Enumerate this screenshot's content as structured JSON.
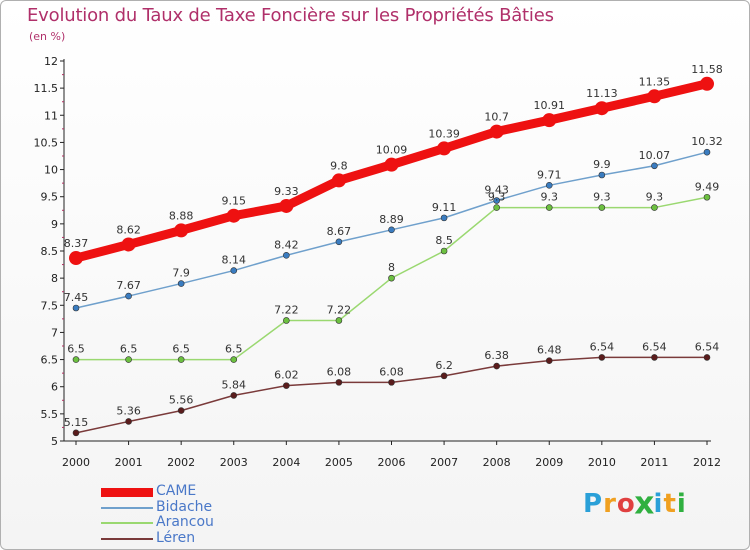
{
  "title": "Evolution du Taux de Taxe Foncière sur les Propriétés Bâties",
  "unit_label": "(en %)",
  "logo": {
    "text": "Proxiti",
    "colors": [
      "#2aa0d8",
      "#f0a020",
      "#e04040",
      "#30b040",
      "#2aa0d8",
      "#f0a020",
      "#30b040"
    ]
  },
  "chart_data": {
    "type": "line",
    "title": "Evolution du Taux de Taxe Foncière sur les Propriétés Bâties",
    "ylabel": "(en %)",
    "xlabel": "",
    "x": [
      "2000",
      "2001",
      "2002",
      "2003",
      "2004",
      "2005",
      "2006",
      "2007",
      "2008",
      "2009",
      "2010",
      "2011",
      "2012"
    ],
    "ylim": [
      5,
      12
    ],
    "yticks": [
      "5",
      "5.5",
      "6",
      "6.5",
      "7",
      "7.5",
      "8",
      "8.5",
      "9",
      "9.5",
      "10",
      "10.5",
      "11",
      "11.5",
      "12"
    ],
    "grid": false,
    "legend_position": "bottom-left",
    "series": [
      {
        "name": "CAME",
        "color": "#ee1111",
        "marker_color": "#ee1111",
        "values": [
          8.37,
          8.62,
          8.88,
          9.15,
          9.33,
          9.8,
          10.09,
          10.39,
          10.7,
          10.91,
          11.13,
          11.35,
          11.58
        ],
        "labels": [
          "8.37",
          "8.62",
          "8.88",
          "9.15",
          "9.33",
          "9.8",
          "10.09",
          "10.39",
          "10.7",
          "10.91",
          "11.13",
          "11.35",
          "11.58"
        ]
      },
      {
        "name": "Bidache",
        "color": "#6fa0cc",
        "marker_color": "#3a7cc0",
        "values": [
          7.45,
          7.67,
          7.9,
          8.14,
          8.42,
          8.67,
          8.89,
          9.11,
          9.43,
          9.71,
          9.9,
          10.07,
          10.32
        ],
        "labels": [
          "7.45",
          "7.67",
          "7.9",
          "8.14",
          "8.42",
          "8.67",
          "8.89",
          "9.11",
          "9.43",
          "9.71",
          "9.9",
          "10.07",
          "10.32"
        ]
      },
      {
        "name": "Arancou",
        "color": "#9ad870",
        "marker_color": "#6cc040",
        "values": [
          6.5,
          6.5,
          6.5,
          6.5,
          7.22,
          7.22,
          8,
          8.5,
          9.3,
          9.3,
          9.3,
          9.3,
          9.49
        ],
        "labels": [
          "6.5",
          "6.5",
          "6.5",
          "6.5",
          "7.22",
          "7.22",
          "8",
          "8.5",
          "9.3",
          "9.3",
          "9.3",
          "9.3",
          "9.49"
        ]
      },
      {
        "name": "Léren",
        "color": "#7a3a3a",
        "marker_color": "#5a1c1c",
        "values": [
          5.15,
          5.36,
          5.56,
          5.84,
          6.02,
          6.08,
          6.08,
          6.2,
          6.38,
          6.48,
          6.54,
          6.54,
          6.54
        ],
        "labels": [
          "5.15",
          "5.36",
          "5.56",
          "5.84",
          "6.02",
          "6.08",
          "6.08",
          "6.2",
          "6.38",
          "6.48",
          "6.54",
          "6.54",
          "6.54"
        ]
      }
    ]
  }
}
